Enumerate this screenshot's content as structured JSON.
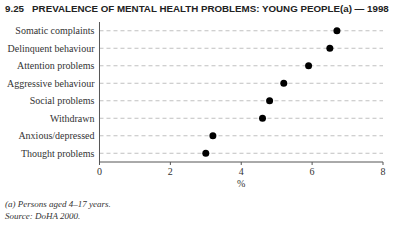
{
  "chart_data": {
    "type": "dot",
    "orientation": "horizontal",
    "title": "9.25   PREVALENCE OF MENTAL HEALTH PROBLEMS: YOUNG PEOPLE(a) — 1998",
    "categories": [
      "Somatic complaints",
      "Delinquent behaviour",
      "Attention problems",
      "Aggressive behaviour",
      "Social problems",
      "Withdrawn",
      "Anxious/depressed",
      "Thought problems"
    ],
    "values": [
      6.7,
      6.5,
      5.9,
      5.2,
      4.8,
      4.6,
      3.2,
      3.0
    ],
    "color": "#000000",
    "marker": "circle",
    "xlabel": "%",
    "xlim": [
      0,
      8
    ],
    "xticks": [
      0,
      2,
      4,
      6,
      8
    ],
    "annotations": [
      "(a) Persons aged 4–17 years.",
      "Source: DoHA 2000."
    ]
  }
}
